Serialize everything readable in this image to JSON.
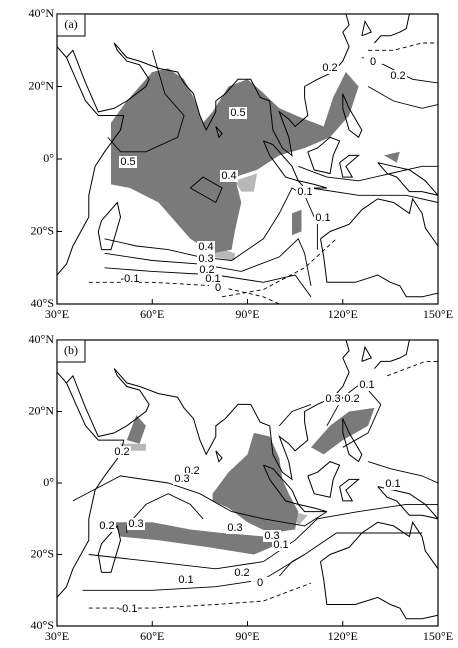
{
  "panels": [
    {
      "label": "(a)",
      "x_labels": [
        "30°E",
        "60°E",
        "90°E",
        "120°E",
        "150°E"
      ],
      "y_labels": [
        "40°N",
        "20°N",
        "0°",
        "20°S",
        "40°S"
      ],
      "contour_labels": [
        "0.2",
        "0",
        "0.2",
        "0.5",
        "0.5",
        "0.4",
        "0.1",
        "0.1",
        "0.4",
        "0.3",
        "0.2",
        "0.1",
        "0",
        "-0.1"
      ]
    },
    {
      "label": "(b)",
      "x_labels": [
        "30°E",
        "60°E",
        "90°E",
        "120°E",
        "150°E"
      ],
      "y_labels": [
        "40°N",
        "20°N",
        "0°",
        "20°S",
        "40°S"
      ],
      "contour_labels": [
        "0.1",
        "0.3",
        "0.2",
        "0.2",
        "0.2",
        "0.3",
        "0.2",
        "0.3",
        "0.3",
        "0.3",
        "0.1",
        "0.1",
        "0.1",
        "0.2",
        "0",
        "-0.1"
      ]
    }
  ]
}
